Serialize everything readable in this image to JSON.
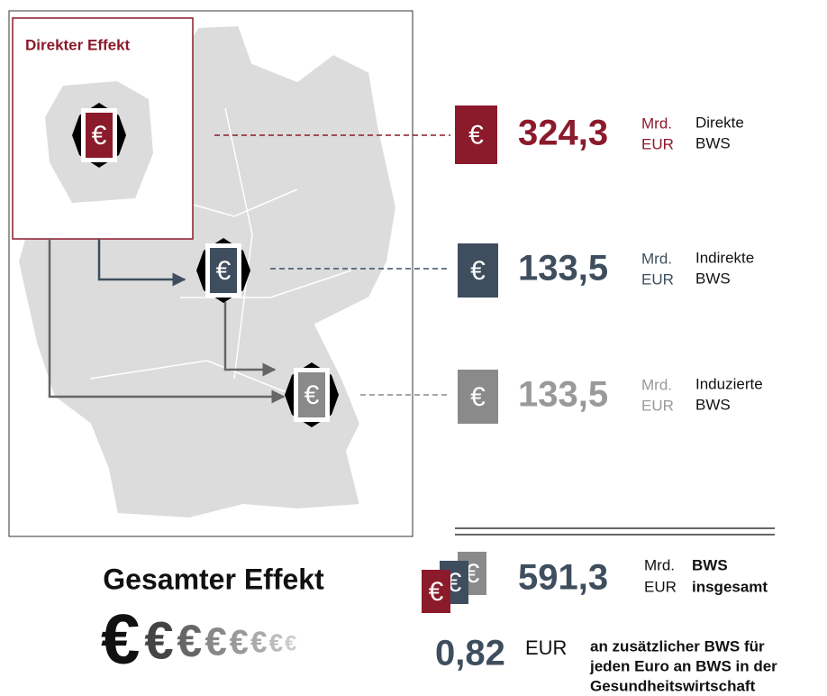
{
  "symbol": "€",
  "inset": {
    "title": "Direkter Effekt"
  },
  "rows": [
    {
      "value": "324,3",
      "unit1": "Mrd.",
      "unit2": "EUR",
      "label1": "Direkte",
      "label2": "BWS"
    },
    {
      "value": "133,5",
      "unit1": "Mrd.",
      "unit2": "EUR",
      "label1": "Indirekte",
      "label2": "BWS"
    },
    {
      "value": "133,5",
      "unit1": "Mrd.",
      "unit2": "EUR",
      "label1": "Induzierte",
      "label2": "BWS"
    }
  ],
  "total": {
    "title": "Gesamter Effekt",
    "value": "591,3",
    "unit1": "Mrd.",
    "unit2": "EUR",
    "label1": "BWS",
    "label2": "insgesamt"
  },
  "multiplier": {
    "value": "0,82",
    "unit": "EUR",
    "lines": [
      "an zusätzlicher BWS für",
      "jeden Euro an BWS in der",
      "Gesundheitswirtschaft"
    ]
  }
}
